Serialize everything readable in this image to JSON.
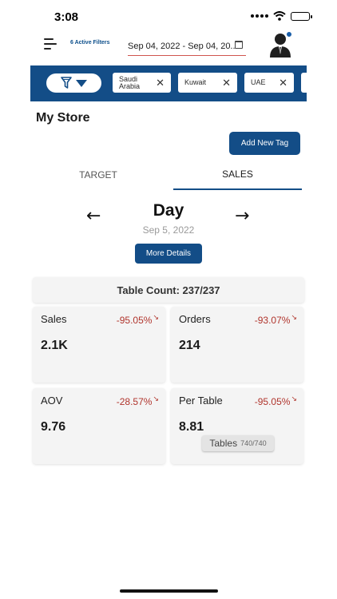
{
  "status_bar": {
    "time": "3:08"
  },
  "header": {
    "active_filters": "6 Active Filters",
    "date_range": "Sep 04, 2022 - Sep 04, 20..."
  },
  "filters": {
    "chips": [
      {
        "label": "Saudi Arabia"
      },
      {
        "label": "Kuwait"
      },
      {
        "label": "UAE"
      }
    ]
  },
  "page": {
    "title": "My Store",
    "add_tag_label": "Add New Tag"
  },
  "tabs": [
    {
      "label": "TARGET",
      "active": false
    },
    {
      "label": "SALES",
      "active": true
    }
  ],
  "day_nav": {
    "title": "Day",
    "date": "Sep 5, 2022",
    "more_details_label": "More Details"
  },
  "table_count": "Table Count: 237/237",
  "metrics": [
    {
      "label": "Sales",
      "change": "-95.05%",
      "value": "2.1K"
    },
    {
      "label": "Orders",
      "change": "-93.07%",
      "value": "214"
    },
    {
      "label": "AOV",
      "change": "-28.57%",
      "value": "9.76"
    },
    {
      "label": "Per Table",
      "change": "-95.05%",
      "value": "8.81"
    }
  ],
  "tables_pill": {
    "label": "Tables",
    "count": "740/740"
  },
  "colors": {
    "accent": "#134d87",
    "negative": "#b0342c"
  }
}
